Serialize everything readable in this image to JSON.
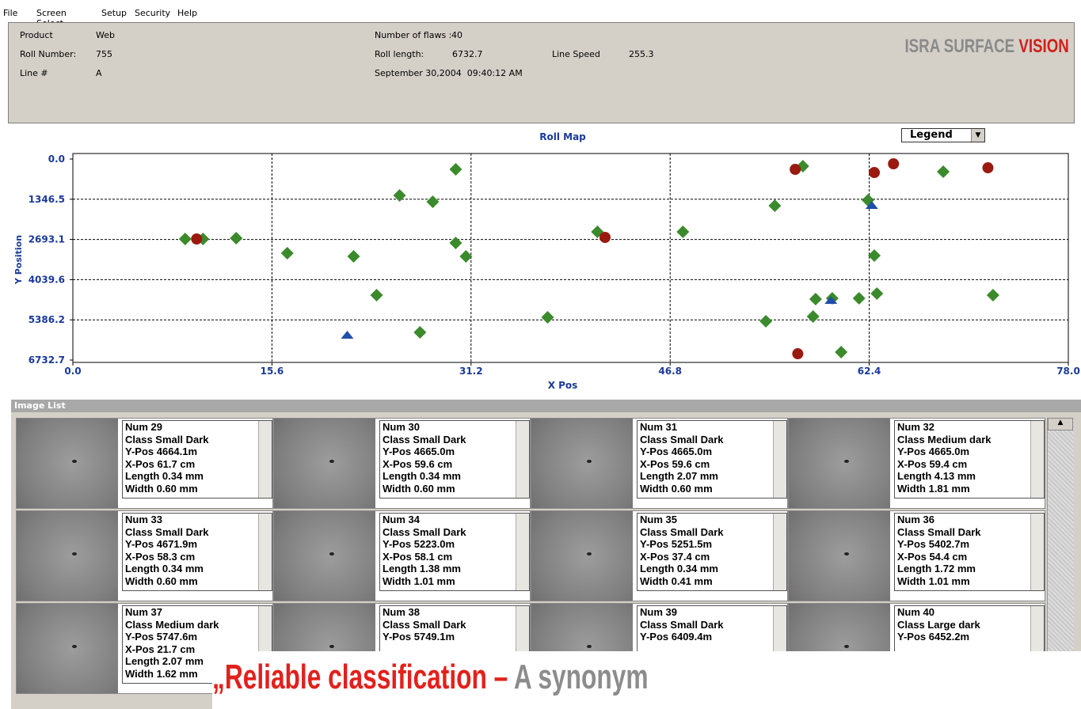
{
  "menu": [
    "File",
    "Screen Select",
    "Setup",
    "Security",
    "Help"
  ],
  "header": {
    "product_label": "Product",
    "product": "Web",
    "roll_number_label": "Roll Number:",
    "roll_number": "755",
    "line_label": "Line #",
    "line": "A",
    "flaws_label": "Number of flaws :",
    "flaws": "40",
    "roll_length_label": "Roll length:",
    "roll_length": "6732.7",
    "line_speed_label": "Line Speed",
    "line_speed": "255.3",
    "timestamp": "September 30,2004  09:40:12 AM",
    "logo_gray": "ISRA SURFACE",
    "logo_red": "VISION"
  },
  "legend_dropdown": "Legend",
  "chart_data": {
    "type": "scatter",
    "title": "Roll Map",
    "xlabel": "X Pos",
    "ylabel": "Y Position",
    "xlim": [
      0,
      78
    ],
    "ylim": [
      0,
      6732.7
    ],
    "y_inverted": true,
    "grid": true,
    "xticks": [
      {
        "value": 0,
        "label": "0.0"
      },
      15.6,
      31.2,
      46.8,
      62.4,
      {
        "value": 78,
        "label": "78.0"
      }
    ],
    "yticks": [
      {
        "value": 0,
        "label": "0.0"
      },
      1346.5,
      2693.1,
      4039.6,
      5386.2,
      6732.7
    ],
    "series": [
      {
        "color": "#3b8a2c",
        "marker": "diamond",
        "x": [
          8.8,
          10.2,
          12.8,
          16.8,
          22.0,
          23.8,
          25.6,
          27.2,
          28.2,
          30.0,
          30.0,
          30.8,
          37.2,
          41.1,
          47.8,
          54.3,
          55.0,
          57.2,
          58.0,
          58.2,
          59.5,
          60.2,
          61.6,
          62.3,
          62.8,
          63.0,
          68.2,
          72.1
        ],
        "values": [
          2677,
          2677,
          2651,
          3154,
          3260,
          4559,
          1219,
          5805,
          1431,
          345,
          2810,
          3260,
          5301,
          2439,
          2439,
          5434,
          1564,
          239,
          5275,
          4692,
          4665,
          6468,
          4665,
          1378,
          3234,
          4506,
          424,
          4559
        ]
      },
      {
        "color": "#9a1a10",
        "marker": "circle",
        "x": [
          9.7,
          41.7,
          56.6,
          56.8,
          62.8,
          64.3,
          71.7
        ],
        "values": [
          2677,
          2624,
          345,
          6521,
          451,
          159,
          292
        ]
      },
      {
        "color": "#1f4fa8",
        "marker": "triangle",
        "x": [
          21.5,
          59.4,
          62.6
        ],
        "values": [
          5911,
          4745,
          1564
        ]
      }
    ]
  },
  "image_list": {
    "title": "Image List",
    "cards": [
      {
        "lines": [
          "Num 29",
          "Class Small Dark",
          "Y-Pos 4664.1m",
          "X-Pos 61.7 cm",
          "Length 0.34 mm",
          "Width 0.60 mm"
        ]
      },
      {
        "lines": [
          "Num 30",
          "Class Small Dark",
          "Y-Pos 4665.0m",
          "X-Pos 59.6 cm",
          "Length 0.34 mm",
          "Width 0.60 mm"
        ]
      },
      {
        "lines": [
          "Num 31",
          "Class Small Dark",
          "Y-Pos 4665.0m",
          "X-Pos 59.6 cm",
          "Length 2.07 mm",
          "Width 0.60 mm"
        ]
      },
      {
        "lines": [
          "Num 32",
          "Class Medium dark",
          "Y-Pos 4665.0m",
          "X-Pos 59.4 cm",
          "Length 4.13 mm",
          "Width 1.81 mm"
        ]
      },
      {
        "lines": [
          "Num 33",
          "Class Small Dark",
          "Y-Pos 4671.9m",
          "X-Pos 58.3 cm",
          "Length 0.34 mm",
          "Width 0.60 mm"
        ]
      },
      {
        "lines": [
          "Num 34",
          "Class Small Dark",
          "Y-Pos 5223.0m",
          "X-Pos 58.1 cm",
          "Length 1.38 mm",
          "Width 1.01 mm"
        ]
      },
      {
        "lines": [
          "Num 35",
          "Class Small Dark",
          "Y-Pos 5251.5m",
          "X-Pos 37.4 cm",
          "Length 0.34 mm",
          "Width 0.41 mm"
        ]
      },
      {
        "lines": [
          "Num 36",
          "Class Small Dark",
          "Y-Pos 5402.7m",
          "X-Pos 54.4 cm",
          "Length 1.72 mm",
          "Width 1.01 mm"
        ]
      },
      {
        "lines": [
          "Num 37",
          "Class Medium dark",
          "Y-Pos 5747.6m",
          "X-Pos 21.7 cm",
          "Length 2.07 mm",
          "Width 1.62 mm"
        ]
      },
      {
        "lines": [
          "Num 38",
          "Class Small Dark",
          "Y-Pos 5749.1m"
        ]
      },
      {
        "lines": [
          "Num 39",
          "Class Small Dark",
          "Y-Pos 6409.4m"
        ]
      },
      {
        "lines": [
          "Num 40",
          "Class Large dark",
          "Y-Pos 6452.2m"
        ]
      }
    ]
  },
  "tagline": {
    "red": "„Reliable classification –",
    "gray": "A synonym"
  }
}
